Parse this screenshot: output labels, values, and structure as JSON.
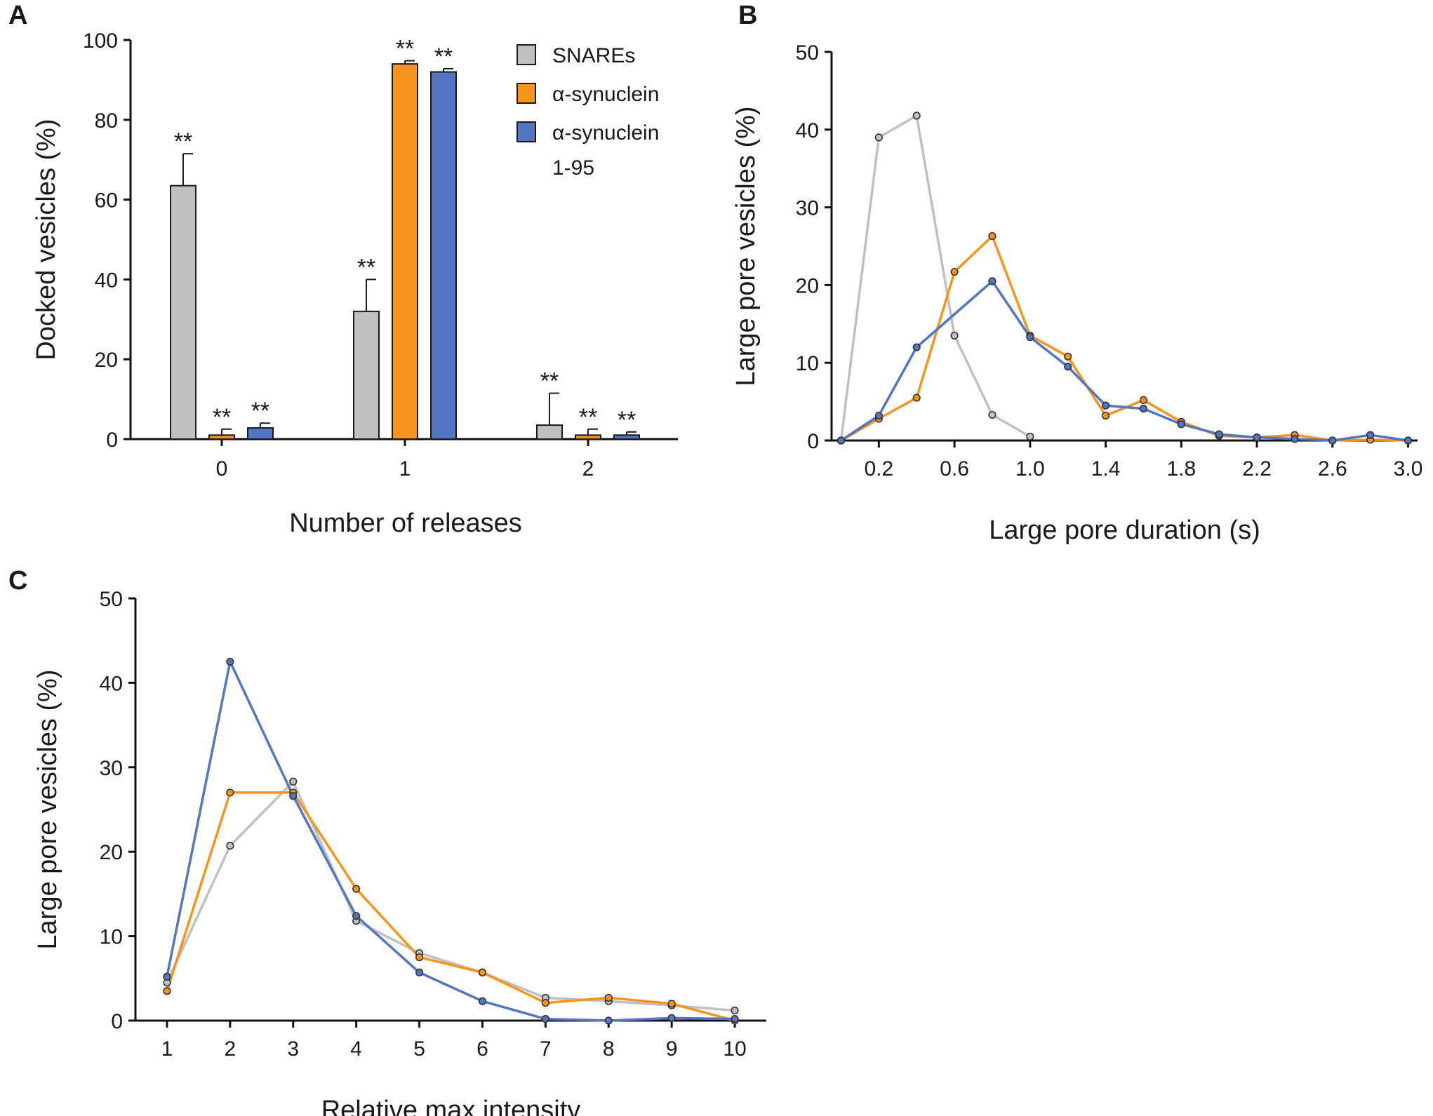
{
  "colors": {
    "snares": "#c0c0c0",
    "asyn": "#f7941d",
    "asyn195": "#5475c1",
    "bar_edge": "#1a1a1a"
  },
  "chart_data": [
    {
      "panel": "A",
      "type": "bar",
      "title": "",
      "xlabel": "Number  of releases",
      "ylabel": "Docked vesicles (%)",
      "ylim": [
        0,
        100
      ],
      "yticks": [
        0,
        20,
        40,
        60,
        80,
        100
      ],
      "categories": [
        "0",
        "1",
        "2"
      ],
      "series": [
        {
          "name": "SNAREs",
          "color_key": "snares",
          "values": [
            63.5,
            32,
            3.5
          ],
          "errors": [
            8,
            8,
            8
          ],
          "stars": [
            "**",
            "**",
            "**"
          ]
        },
        {
          "name": "α-synuclein",
          "color_key": "asyn",
          "values": [
            1,
            94,
            1
          ],
          "errors": [
            1.5,
            0.8,
            1.5
          ],
          "stars": [
            "**",
            "**",
            "**"
          ]
        },
        {
          "name": "α-synuclein 1-95",
          "legend_lines": [
            "α-synuclein",
            "1-95"
          ],
          "color_key": "asyn195",
          "values": [
            2.8,
            92,
            1
          ],
          "errors": [
            1.2,
            0.8,
            0.8
          ],
          "stars": [
            "**",
            "**",
            "**"
          ]
        }
      ],
      "legend": "top-right"
    },
    {
      "panel": "B",
      "type": "line",
      "xlabel": "Large pore duration (s)",
      "ylabel": "Large pore vesicles (%)",
      "xlim": [
        -0.05,
        3.05
      ],
      "ylim": [
        0,
        50
      ],
      "xticks": [
        0.2,
        0.6,
        1.0,
        1.4,
        1.8,
        2.2,
        2.6,
        3.0
      ],
      "xtick_labels": [
        "0.2",
        "0.6",
        "1.0",
        "1.4",
        "1.8",
        "2.2",
        "2.6",
        "3.0"
      ],
      "yticks": [
        0,
        10,
        20,
        30,
        40,
        50
      ],
      "series": [
        {
          "name": "SNAREs",
          "color_key": "snares",
          "x": [
            0,
            0.2,
            0.4,
            0.6,
            0.8,
            1.0
          ],
          "y": [
            0,
            39,
            41.8,
            13.5,
            3.3,
            0.5
          ]
        },
        {
          "name": "α-synuclein",
          "color_key": "asyn",
          "x": [
            0,
            0.2,
            0.4,
            0.6,
            0.8,
            1.0,
            1.2,
            1.4,
            1.6,
            1.8,
            2.0,
            2.2,
            2.4,
            2.6,
            2.8,
            3.0
          ],
          "y": [
            0,
            2.8,
            5.5,
            21.7,
            26.3,
            13.5,
            10.8,
            3.2,
            5.2,
            2.4,
            0.6,
            0.4,
            0.7,
            0,
            0.1,
            0
          ]
        },
        {
          "name": "α-synuclein 1-95",
          "color_key": "asyn195",
          "x": [
            0,
            0.2,
            0.4,
            0.8,
            1.0,
            1.2,
            1.4,
            1.6,
            1.8,
            2.0,
            2.2,
            2.4,
            2.6,
            2.8,
            3.0
          ],
          "y": [
            0,
            3.2,
            12,
            20.5,
            13.3,
            9.5,
            4.5,
            4.1,
            2.1,
            0.8,
            0.4,
            0.2,
            0,
            0.7,
            0
          ]
        }
      ]
    },
    {
      "panel": "C",
      "type": "line",
      "xlabel": "Relative max intensity",
      "ylabel": "Large pore vesicles (%)",
      "xlim": [
        0.5,
        10.5
      ],
      "ylim": [
        0,
        50
      ],
      "xticks": [
        1,
        2,
        3,
        4,
        5,
        6,
        7,
        8,
        9,
        10
      ],
      "xtick_labels": [
        "1",
        "2",
        "3",
        "4",
        "5",
        "6",
        "7",
        "8",
        "9",
        "10"
      ],
      "yticks": [
        0,
        10,
        20,
        30,
        40,
        50
      ],
      "series": [
        {
          "name": "SNAREs",
          "color_key": "snares",
          "x": [
            1,
            2,
            3,
            4,
            5,
            6,
            7,
            8,
            9,
            10
          ],
          "y": [
            4.5,
            20.7,
            28.3,
            11.8,
            8.0,
            5.7,
            2.7,
            2.3,
            1.8,
            1.2
          ]
        },
        {
          "name": "α-synuclein",
          "color_key": "asyn",
          "x": [
            1,
            2,
            3,
            4,
            5,
            6,
            7,
            8,
            9,
            10
          ],
          "y": [
            3.5,
            27,
            27,
            15.6,
            7.5,
            5.7,
            2.1,
            2.7,
            2.0,
            0
          ]
        },
        {
          "name": "α-synuclein 1-95",
          "color_key": "asyn195",
          "x": [
            1,
            2,
            3,
            4,
            5,
            6,
            7,
            8,
            9,
            10
          ],
          "y": [
            5.2,
            42.5,
            26.6,
            12.4,
            5.7,
            2.3,
            0.2,
            0,
            0.3,
            0.2
          ]
        }
      ]
    }
  ]
}
